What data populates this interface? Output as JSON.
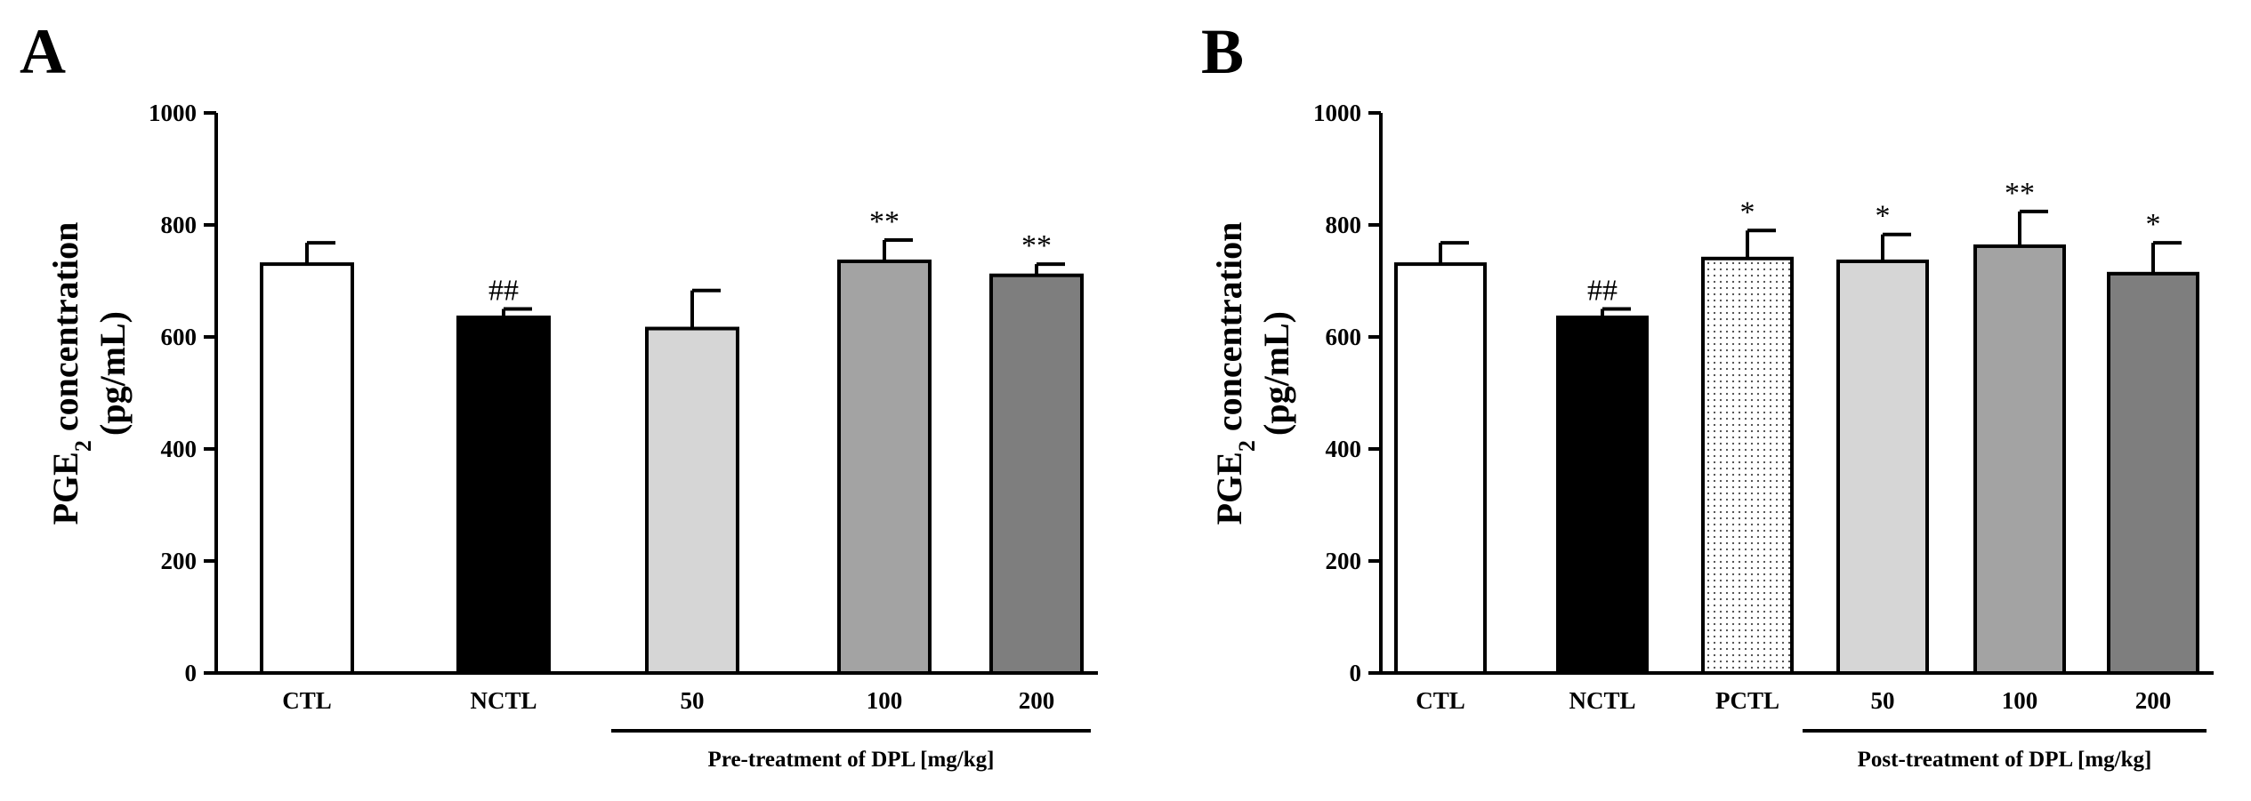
{
  "colors": {
    "white": "#ffffff",
    "black": "#000000",
    "light_gray": "#d6d6d6",
    "mid_gray": "#a3a3a3",
    "dark_gray": "#7e7e7e",
    "axis": "#000000"
  },
  "chart_data": [
    {
      "panel": "A",
      "type": "bar",
      "ylabel_main": "PGE",
      "ylabel_sub": "2",
      "ylabel_rest": " concentration",
      "ylabel_unit": "(pg/mL)",
      "ylim": [
        0,
        1000
      ],
      "yticks": [
        "0",
        "200",
        "400",
        "600",
        "800",
        "1000"
      ],
      "categories": [
        "CTL",
        "NCTL",
        "50",
        "100",
        "200"
      ],
      "values": [
        730,
        635,
        615,
        735,
        710
      ],
      "errors": [
        38,
        15,
        68,
        38,
        20
      ],
      "fills": [
        "white",
        "black",
        "light_gray",
        "mid_gray",
        "dark_gray"
      ],
      "annotations": [
        "",
        "##",
        "",
        "**",
        "**"
      ],
      "group_label": "Pre-treatment of DPL [mg/kg]",
      "group_start_index": 2
    },
    {
      "panel": "B",
      "type": "bar",
      "ylabel_main": "PGE",
      "ylabel_sub": "2",
      "ylabel_rest": " concentration",
      "ylabel_unit": "(pg/mL)",
      "ylim": [
        0,
        1000
      ],
      "yticks": [
        "0",
        "200",
        "400",
        "600",
        "800",
        "1000"
      ],
      "categories": [
        "CTL",
        "NCTL",
        "PCTL",
        "50",
        "100",
        "200"
      ],
      "values": [
        730,
        635,
        740,
        735,
        762,
        713
      ],
      "errors": [
        38,
        15,
        50,
        48,
        62,
        55
      ],
      "fills": [
        "white",
        "black",
        "dotted",
        "light_gray",
        "mid_gray",
        "dark_gray"
      ],
      "annotations": [
        "",
        "##",
        "*",
        "*",
        "**",
        "*"
      ],
      "group_label": "Post-treatment of DPL [mg/kg]",
      "group_start_index": 3
    }
  ]
}
